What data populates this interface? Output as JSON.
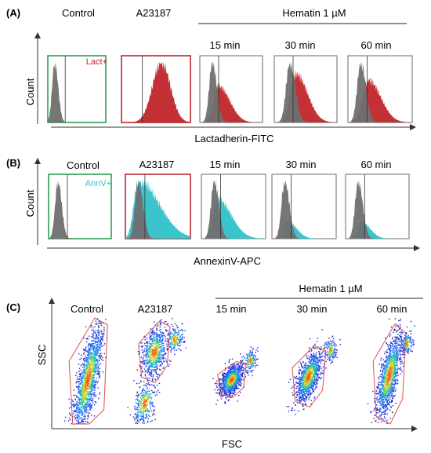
{
  "colors": {
    "control_frame": "#2e9e4f",
    "a23187_frame": "#c0262c",
    "lact_fill": "#c0262c",
    "annv_fill": "#2fc1c9",
    "control_fill": "#6f6f6f",
    "gate": "#e0504c"
  },
  "chart_data": [
    {
      "id": "A",
      "type": "histogram",
      "panel_label": "(A)",
      "group_label": "Hematin 1 µM",
      "xlabel": "Lactadherin-FITC",
      "ylabel": "Count",
      "marker_label": "Lact+",
      "columns": [
        {
          "label": "Control",
          "curves": [
            {
              "kind": "control",
              "peak": 0.12,
              "width": 0.045,
              "skew": 1.3
            }
          ]
        },
        {
          "label": "A23187",
          "curves": [
            {
              "kind": "positive",
              "peak": 0.58,
              "width": 0.13,
              "skew": 1.0
            }
          ]
        },
        {
          "label": "15 min",
          "curves": [
            {
              "kind": "positive",
              "peak": 0.3,
              "width": 0.08,
              "skew": 2.2,
              "scale": 0.6
            },
            {
              "kind": "control",
              "peak": 0.2,
              "width": 0.05,
              "skew": 1.4
            }
          ]
        },
        {
          "label": "30 min",
          "curves": [
            {
              "kind": "positive",
              "peak": 0.35,
              "width": 0.09,
              "skew": 2.0,
              "scale": 0.8
            },
            {
              "kind": "control",
              "peak": 0.25,
              "width": 0.06,
              "skew": 1.4
            }
          ]
        },
        {
          "label": "60 min",
          "curves": [
            {
              "kind": "positive",
              "peak": 0.32,
              "width": 0.09,
              "skew": 2.1,
              "scale": 0.7
            },
            {
              "kind": "control",
              "peak": 0.2,
              "width": 0.055,
              "skew": 1.4
            }
          ]
        }
      ],
      "gate_position": 0.3
    },
    {
      "id": "B",
      "type": "histogram",
      "panel_label": "(B)",
      "xlabel": "AnnexinV-APC",
      "ylabel": "Count",
      "marker_label": "AnnV+",
      "columns": [
        {
          "label": "Control",
          "curves": [
            {
              "kind": "control",
              "peak": 0.15,
              "width": 0.045,
              "skew": 1.3
            }
          ]
        },
        {
          "label": "A23187",
          "curves": [
            {
              "kind": "positive",
              "peak": 0.2,
              "width": 0.07,
              "skew": 4.5
            },
            {
              "kind": "control",
              "peak": 0.2,
              "width": 0.05,
              "skew": 1.4
            }
          ]
        },
        {
          "label": "15 min",
          "curves": [
            {
              "kind": "positive",
              "peak": 0.24,
              "width": 0.06,
              "skew": 3.6,
              "scale": 0.7
            },
            {
              "kind": "control",
              "peak": 0.2,
              "width": 0.05,
              "skew": 1.4
            }
          ]
        },
        {
          "label": "30 min",
          "curves": [
            {
              "kind": "positive",
              "peak": 0.24,
              "width": 0.05,
              "skew": 2.8,
              "scale": 0.3
            },
            {
              "kind": "control",
              "peak": 0.2,
              "width": 0.05,
              "skew": 1.4
            }
          ]
        },
        {
          "label": "60 min",
          "curves": [
            {
              "kind": "positive",
              "peak": 0.24,
              "width": 0.05,
              "skew": 2.8,
              "scale": 0.3
            },
            {
              "kind": "control",
              "peak": 0.2,
              "width": 0.05,
              "skew": 1.4
            }
          ]
        }
      ],
      "gate_position": 0.3
    },
    {
      "id": "C",
      "type": "scatter",
      "panel_label": "(C)",
      "group_label": "Hematin 1 µM",
      "xlabel": "FSC",
      "ylabel": "SSC",
      "columns": [
        {
          "label": "Control",
          "clusters": [
            {
              "cx": 0.42,
              "cy": 0.42,
              "sx": 0.13,
              "sy": 0.26,
              "rho": 0.75,
              "n": 1500
            }
          ]
        },
        {
          "label": "A23187",
          "clusters": [
            {
              "cx": 0.45,
              "cy": 0.68,
              "sx": 0.1,
              "sy": 0.12,
              "rho": 0.3,
              "n": 700
            },
            {
              "cx": 0.3,
              "cy": 0.2,
              "sx": 0.09,
              "sy": 0.1,
              "rho": 0.4,
              "n": 350
            },
            {
              "cx": 0.78,
              "cy": 0.8,
              "sx": 0.07,
              "sy": 0.06,
              "rho": 0.2,
              "n": 200
            }
          ]
        },
        {
          "label": "15 min",
          "clusters": [
            {
              "cx": 0.5,
              "cy": 0.42,
              "sx": 0.09,
              "sy": 0.07,
              "rho": 0.5,
              "n": 1100
            },
            {
              "cx": 0.8,
              "cy": 0.6,
              "sx": 0.05,
              "sy": 0.05,
              "rho": 0.1,
              "n": 150
            }
          ]
        },
        {
          "label": "30 min",
          "clusters": [
            {
              "cx": 0.45,
              "cy": 0.45,
              "sx": 0.1,
              "sy": 0.12,
              "rho": 0.6,
              "n": 1100
            },
            {
              "cx": 0.78,
              "cy": 0.7,
              "sx": 0.05,
              "sy": 0.05,
              "rho": 0.1,
              "n": 150
            }
          ]
        },
        {
          "label": "60 min",
          "clusters": [
            {
              "cx": 0.48,
              "cy": 0.46,
              "sx": 0.11,
              "sy": 0.2,
              "rho": 0.7,
              "n": 1300
            },
            {
              "cx": 0.78,
              "cy": 0.76,
              "sx": 0.05,
              "sy": 0.05,
              "rho": 0.1,
              "n": 150
            }
          ]
        }
      ]
    }
  ]
}
